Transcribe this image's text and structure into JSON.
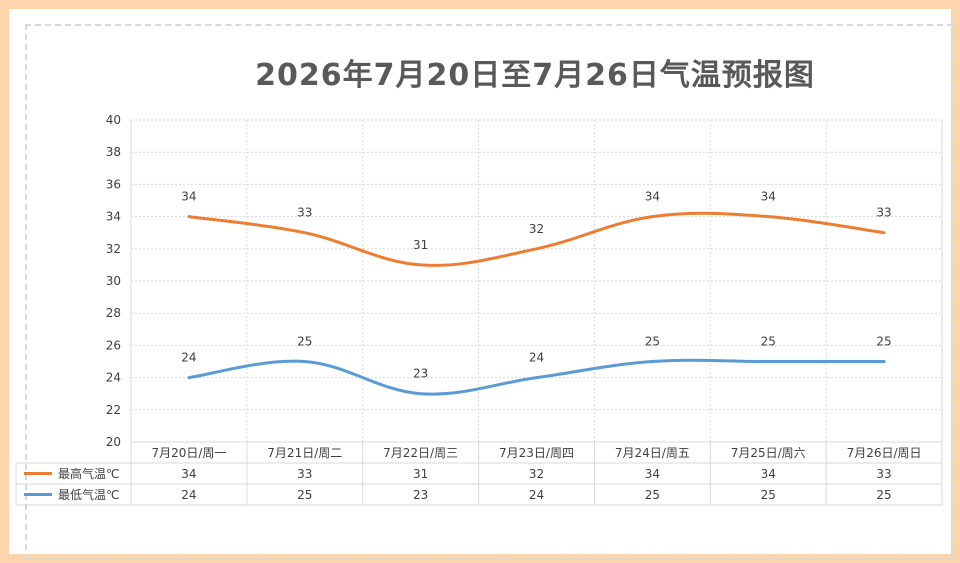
{
  "title": "2026年7月20日至7月26日气温预报图",
  "colors": {
    "high": "#ed7d31",
    "low": "#5b9bd5",
    "grid": "#d9d9d9",
    "text": "#404040",
    "border": "#fdd5ad"
  },
  "chart_data": {
    "type": "line",
    "title": "2026年7月20日至7月26日气温预报图",
    "categories": [
      "7月20日/周一",
      "7月21日/周二",
      "7月22日/周三",
      "7月23日/周四",
      "7月24日/周五",
      "7月25日/周六",
      "7月26日/周日"
    ],
    "y_ticks": [
      "20",
      "22",
      "24",
      "26",
      "28",
      "30",
      "32",
      "34",
      "36",
      "38",
      "40"
    ],
    "ylim": [
      20,
      40
    ],
    "grid": true,
    "smooth": true,
    "data_table": true,
    "series": [
      {
        "name": "最高气温℃",
        "color": "#ed7d31",
        "values": [
          34,
          33,
          31,
          32,
          34,
          34,
          33
        ]
      },
      {
        "name": "最低气温℃",
        "color": "#5b9bd5",
        "values": [
          24,
          25,
          23,
          24,
          25,
          25,
          25
        ]
      }
    ]
  }
}
